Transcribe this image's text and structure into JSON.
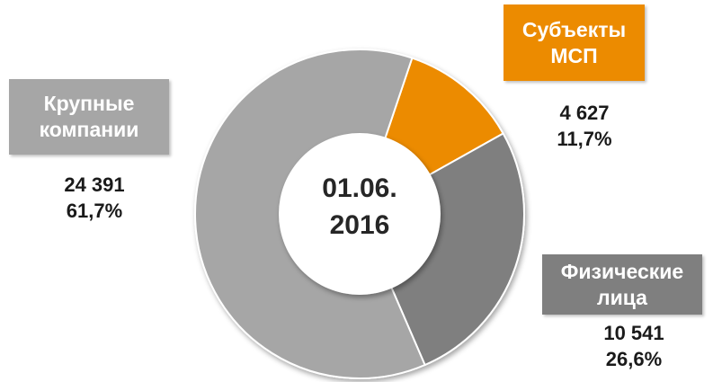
{
  "chart_data": {
    "type": "donut",
    "center_label": "01.06. 2016",
    "categories": [
      "Субъекты МСП",
      "Физические лица",
      "Крупные компании"
    ],
    "values": [
      4627,
      10541,
      24391
    ],
    "value_labels": [
      "4 627",
      "10 541",
      "24 391"
    ],
    "percentages": [
      11.7,
      26.6,
      61.7
    ],
    "percent_labels": [
      "11,7%",
      "26,6%",
      "61,7%"
    ],
    "colors": [
      "#ec8b00",
      "#7f7f7f",
      "#a6a6a6"
    ]
  }
}
